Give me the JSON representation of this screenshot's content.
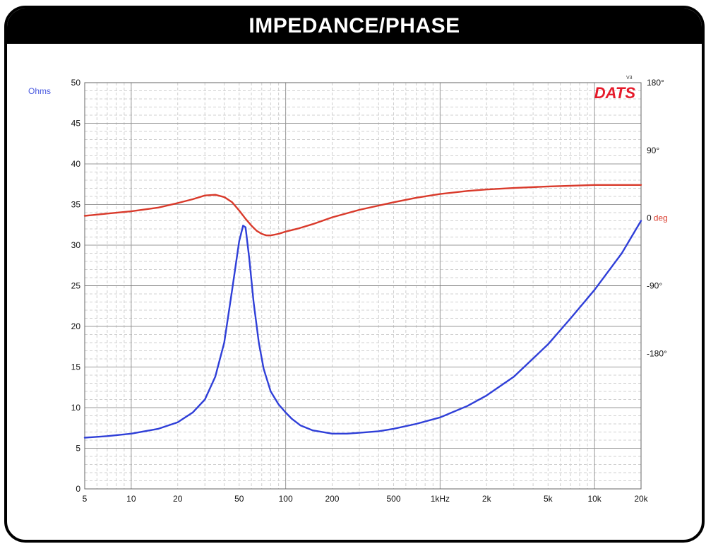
{
  "banner": {
    "title": "IMPEDANCE/PHASE"
  },
  "brand": {
    "logo_text": "DATS",
    "version_text": "V3"
  },
  "colors": {
    "impedance": "#2f3fd8",
    "phase": "#d93a2b",
    "left_label": "#4b5be0",
    "phase_unit": "#d93a2b",
    "grid_major": "#9a9a9a",
    "grid_minor": "#d0d0d0"
  },
  "chart_data": {
    "type": "line",
    "title": "IMPEDANCE/PHASE",
    "xscale": "log",
    "xlim": [
      5,
      20000
    ],
    "x_ticks": [
      {
        "v": 5,
        "label": "5"
      },
      {
        "v": 10,
        "label": "10"
      },
      {
        "v": 20,
        "label": "20"
      },
      {
        "v": 50,
        "label": "50"
      },
      {
        "v": 100,
        "label": "100"
      },
      {
        "v": 200,
        "label": "200"
      },
      {
        "v": 500,
        "label": "500"
      },
      {
        "v": 1000,
        "label": "1kHz"
      },
      {
        "v": 2000,
        "label": "2k"
      },
      {
        "v": 5000,
        "label": "5k"
      },
      {
        "v": 10000,
        "label": "10k"
      },
      {
        "v": 20000,
        "label": "20k"
      }
    ],
    "ylabel_left": "Ohms",
    "ylim_left": [
      0,
      50
    ],
    "y_ticks_left": [
      "0",
      "5",
      "10",
      "15",
      "20",
      "25",
      "30",
      "35",
      "40",
      "45",
      "50"
    ],
    "ylim_right": [
      -360,
      180
    ],
    "y_ticks_right": [
      {
        "v": 180,
        "label": "180°"
      },
      {
        "v": 90,
        "label": "90°"
      },
      {
        "v": 0,
        "label": "0",
        "unit": "deg"
      },
      {
        "v": -90,
        "label": "-90°"
      },
      {
        "v": -180,
        "label": "-180°"
      }
    ],
    "grid": true,
    "series": [
      {
        "axis": "left",
        "x": [
          5,
          7,
          10,
          15,
          20,
          25,
          30,
          35,
          40,
          45,
          50,
          53,
          55,
          58,
          62,
          67,
          72,
          80,
          90,
          100,
          110,
          125,
          150,
          200,
          250,
          300,
          400,
          500,
          700,
          1000,
          1500,
          2000,
          3000,
          5000,
          7000,
          10000,
          15000,
          20000
        ],
        "values": [
          6.3,
          6.5,
          6.8,
          7.4,
          8.2,
          9.4,
          11.0,
          13.8,
          18.0,
          24.5,
          30.5,
          32.4,
          32.2,
          28.5,
          23.0,
          18.0,
          14.8,
          12.0,
          10.4,
          9.4,
          8.6,
          7.8,
          7.2,
          6.8,
          6.8,
          6.9,
          7.1,
          7.4,
          8.0,
          8.8,
          10.2,
          11.5,
          13.8,
          17.8,
          21.0,
          24.5,
          29.0,
          33.0
        ]
      },
      {
        "axis": "right",
        "x": [
          5,
          7,
          10,
          15,
          20,
          25,
          30,
          35,
          40,
          45,
          50,
          55,
          60,
          65,
          70,
          75,
          80,
          90,
          100,
          120,
          150,
          200,
          300,
          500,
          700,
          1000,
          1500,
          2000,
          3000,
          5000,
          7000,
          10000,
          15000,
          20000
        ],
        "values": [
          3,
          6,
          9,
          14,
          20,
          25,
          30,
          31,
          28,
          21,
          10,
          -1,
          -10,
          -17,
          -21,
          -23,
          -23,
          -21,
          -18,
          -14,
          -8,
          1,
          11,
          21,
          27,
          32,
          36,
          38,
          40,
          42,
          43,
          44,
          44,
          44
        ]
      }
    ]
  }
}
